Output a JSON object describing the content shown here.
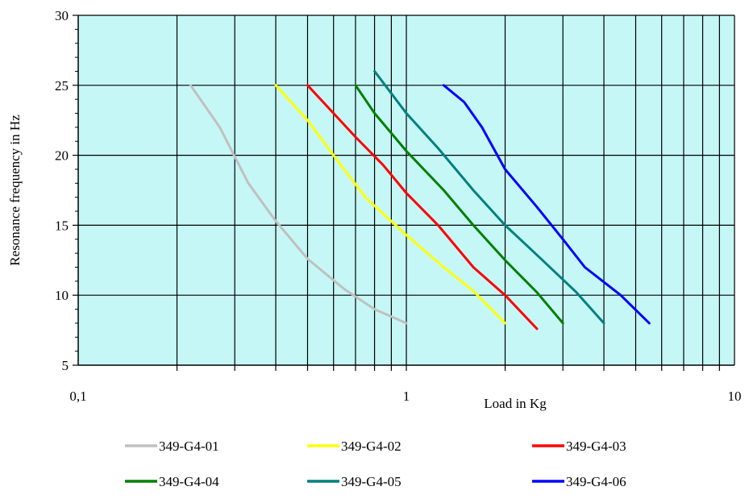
{
  "chart_data": {
    "type": "line",
    "xlabel": "Load in Kg",
    "ylabel": "Resonance frequency in Hz",
    "x_scale": "log",
    "xlim": [
      0.1,
      10
    ],
    "ylim": [
      5,
      30
    ],
    "x_tick_labels": [
      {
        "value": 0.1,
        "label": "0,1"
      },
      {
        "value": 1,
        "label": "1"
      },
      {
        "value": 10,
        "label": "10"
      }
    ],
    "y_ticks": [
      5,
      10,
      15,
      20,
      25,
      30
    ],
    "grid": true,
    "plot_background": "#c6f7f7",
    "legend_position": "bottom",
    "series": [
      {
        "name": "349-G4-01",
        "color": "#c0c0c0",
        "points": [
          [
            0.22,
            25
          ],
          [
            0.27,
            22
          ],
          [
            0.33,
            18
          ],
          [
            0.4,
            15.3
          ],
          [
            0.5,
            12.6
          ],
          [
            0.65,
            10.4
          ],
          [
            0.8,
            9
          ],
          [
            1.0,
            8
          ]
        ]
      },
      {
        "name": "349-G4-02",
        "color": "#ffff00",
        "points": [
          [
            0.4,
            25
          ],
          [
            0.5,
            22.5
          ],
          [
            0.6,
            20
          ],
          [
            0.75,
            17
          ],
          [
            1.0,
            14.3
          ],
          [
            1.3,
            12
          ],
          [
            1.6,
            10.3
          ],
          [
            2.0,
            8
          ]
        ]
      },
      {
        "name": "349-G4-03",
        "color": "#ff0000",
        "points": [
          [
            0.5,
            25
          ],
          [
            0.6,
            23
          ],
          [
            0.7,
            21.3
          ],
          [
            0.85,
            19.3
          ],
          [
            1.0,
            17.3
          ],
          [
            1.25,
            15
          ],
          [
            1.6,
            12
          ],
          [
            2.0,
            10
          ],
          [
            2.5,
            7.6
          ]
        ]
      },
      {
        "name": "349-G4-04",
        "color": "#008000",
        "points": [
          [
            0.7,
            25
          ],
          [
            0.8,
            23
          ],
          [
            1.0,
            20.3
          ],
          [
            1.3,
            17.5
          ],
          [
            1.6,
            15
          ],
          [
            2.0,
            12.5
          ],
          [
            2.5,
            10.2
          ],
          [
            3.0,
            8
          ]
        ]
      },
      {
        "name": "349-G4-05",
        "color": "#008080",
        "points": [
          [
            0.8,
            26
          ],
          [
            1.0,
            23
          ],
          [
            1.25,
            20.5
          ],
          [
            1.6,
            17.5
          ],
          [
            2.0,
            15
          ],
          [
            2.6,
            12.5
          ],
          [
            3.3,
            10.2
          ],
          [
            4.0,
            8
          ]
        ]
      },
      {
        "name": "349-G4-06",
        "color": "#0000ff",
        "points": [
          [
            1.3,
            25
          ],
          [
            1.5,
            23.8
          ],
          [
            1.7,
            22
          ],
          [
            2.0,
            19
          ],
          [
            2.5,
            16.3
          ],
          [
            3.0,
            14
          ],
          [
            3.5,
            12
          ],
          [
            4.5,
            10
          ],
          [
            5.5,
            8
          ]
        ]
      }
    ]
  }
}
